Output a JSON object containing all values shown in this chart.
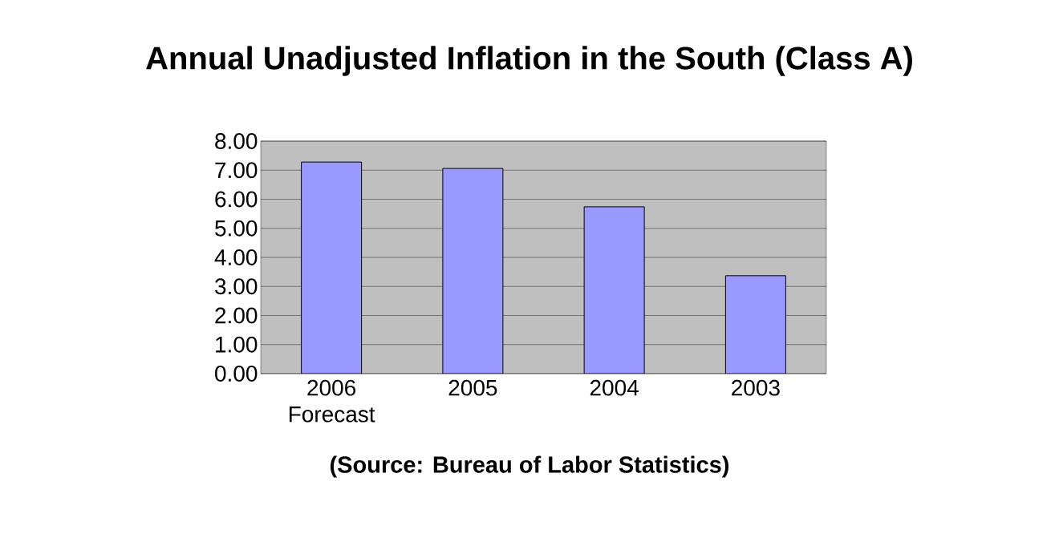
{
  "chart_data": {
    "type": "bar",
    "title": "Annual Unadjusted Inflation in the South (Class A)",
    "categories": [
      "2006 Forecast",
      "2005",
      "2004",
      "2003"
    ],
    "values": [
      7.28,
      7.06,
      5.74,
      3.37
    ],
    "color": "#9999ff",
    "ylim": [
      0,
      8
    ],
    "yticks": [
      {
        "value": 0,
        "label": "0.00"
      },
      {
        "value": 1,
        "label": "1.00"
      },
      {
        "value": 2,
        "label": "2.00"
      },
      {
        "value": 3,
        "label": "3.00"
      },
      {
        "value": 4,
        "label": "4.00"
      },
      {
        "value": 5,
        "label": "5.00"
      },
      {
        "value": 6,
        "label": "6.00"
      },
      {
        "value": 7,
        "label": "7.00"
      },
      {
        "value": 8,
        "label": "8.00"
      }
    ],
    "grid": "y",
    "annotations": [
      "(Source: Bureau of Labor Statistics)"
    ]
  }
}
